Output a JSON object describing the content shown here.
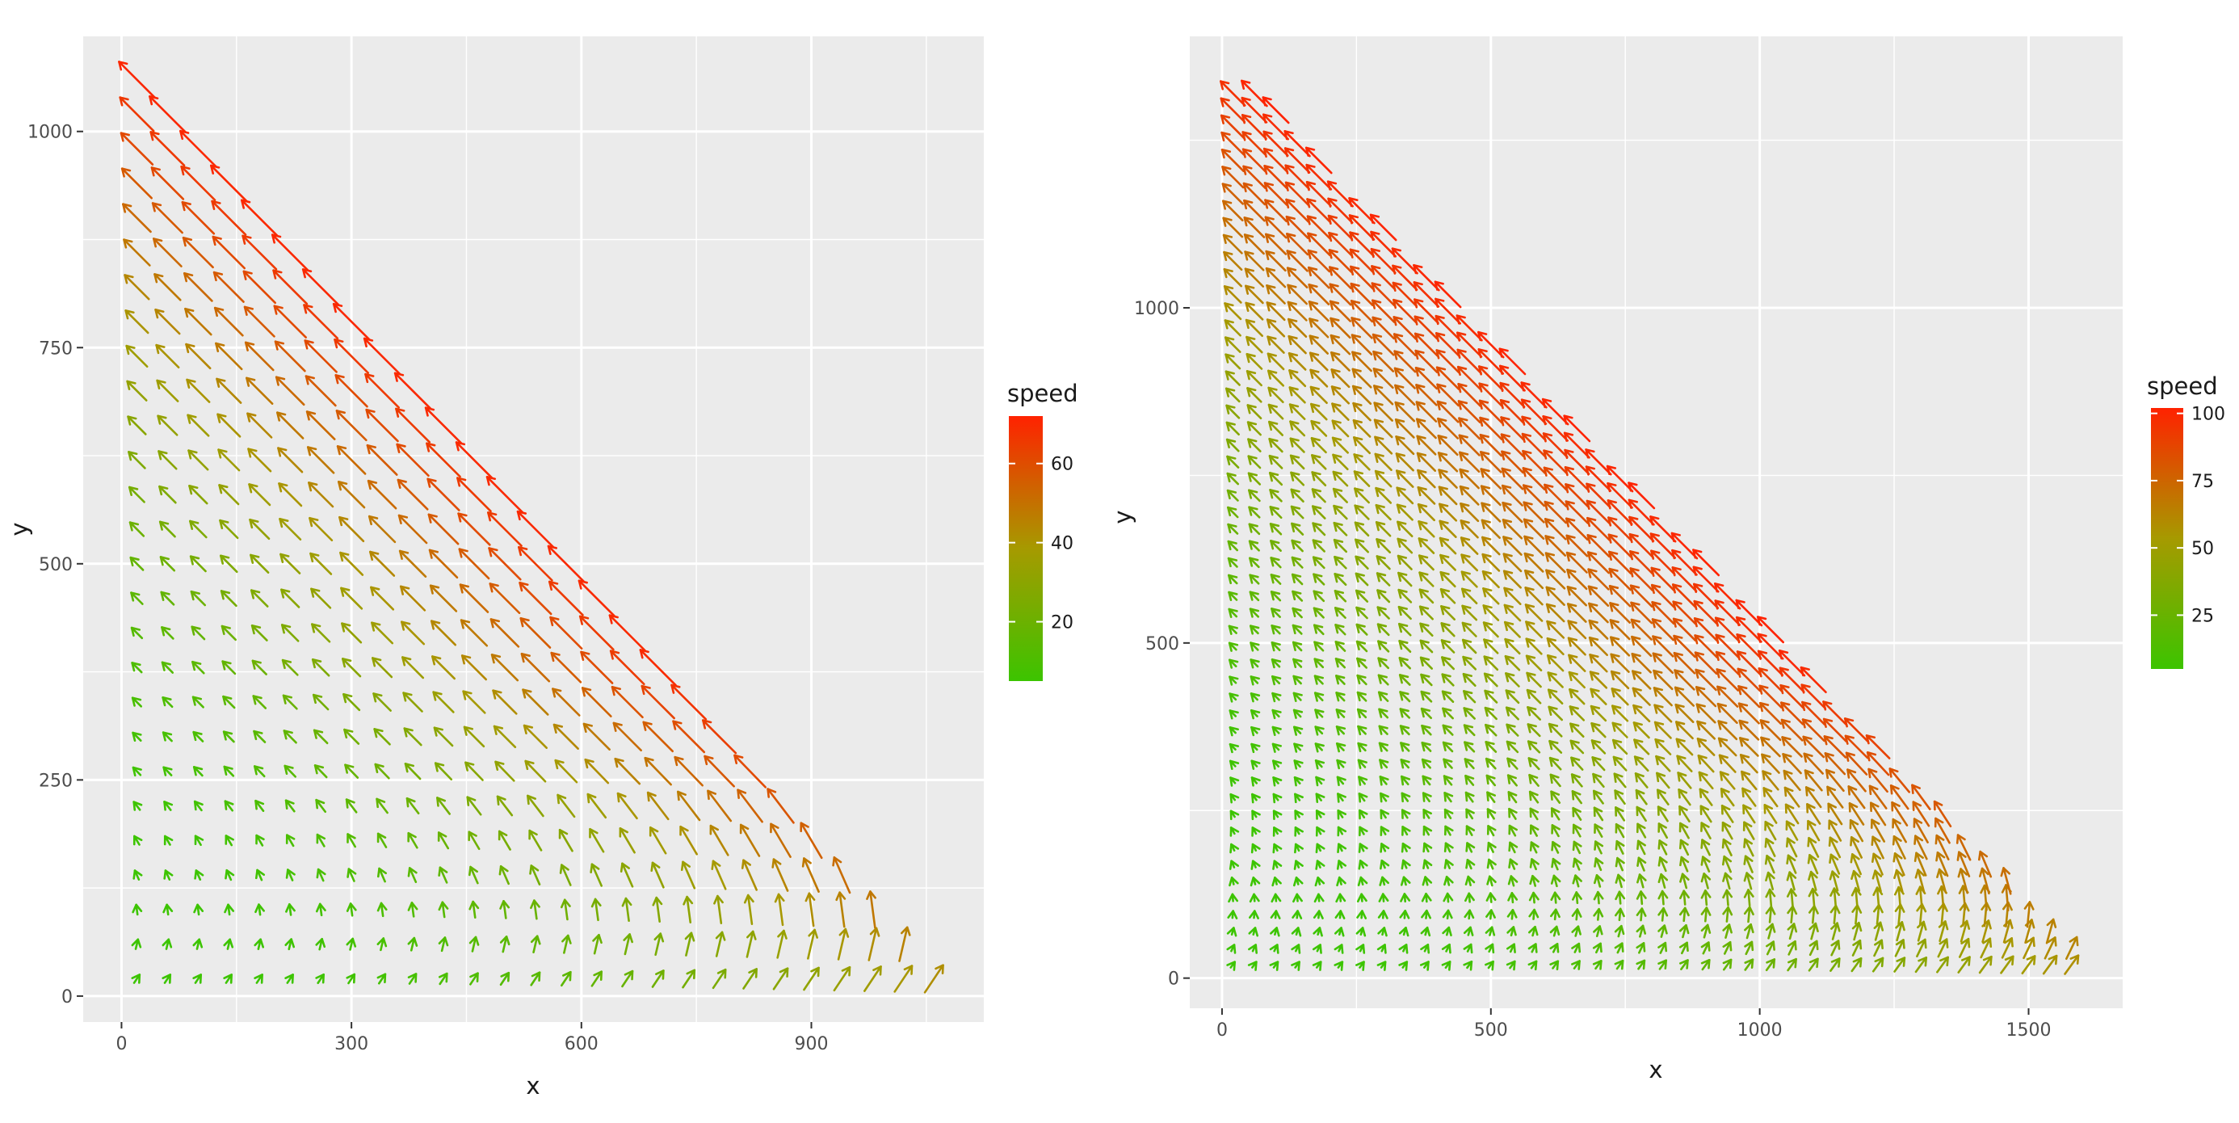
{
  "chart_data": [
    {
      "type": "vector-field",
      "xlabel": "x",
      "ylabel": "y",
      "xlim": [
        -50,
        1125
      ],
      "ylim": [
        -30,
        1110
      ],
      "xticks": [
        0,
        300,
        600,
        900
      ],
      "yticks": [
        0,
        250,
        500,
        750,
        1000
      ],
      "xtick_labels": [
        "0",
        "300",
        "600",
        "900"
      ],
      "ytick_labels": [
        "0",
        "250",
        "500",
        "750",
        "1000"
      ],
      "grid": true,
      "legend": {
        "title": "speed",
        "position": "right",
        "range": [
          5,
          72
        ],
        "ticks": [
          20,
          40,
          60
        ],
        "tick_labels": [
          "20",
          "40",
          "60"
        ],
        "colors": [
          "#3cc400",
          "#ff2200"
        ]
      },
      "field": {
        "x_max": 1070,
        "y_max": 1060,
        "boundary": [
          [
            20,
            1060
          ],
          [
            180,
            1030
          ],
          [
            1070,
            60
          ]
        ],
        "grid_step_x": 40,
        "grid_step_y": 40,
        "max_speed": 72
      }
    },
    {
      "type": "vector-field",
      "xlabel": "x",
      "ylabel": "y",
      "xlim": [
        -60,
        1675
      ],
      "ylim": [
        -45,
        1405
      ],
      "xticks": [
        0,
        500,
        1000,
        1500
      ],
      "yticks": [
        0,
        500,
        1000
      ],
      "xtick_labels": [
        "0",
        "500",
        "1000",
        "1500"
      ],
      "ytick_labels": [
        "0",
        "500",
        "1000"
      ],
      "grid": true,
      "legend": {
        "title": "speed",
        "position": "right",
        "range": [
          5,
          102
        ],
        "ticks": [
          25,
          50,
          75,
          100
        ],
        "tick_labels": [
          "25",
          "50",
          "75",
          "100"
        ],
        "colors": [
          "#3cc400",
          "#ff2200"
        ]
      },
      "field": {
        "x_max": 1590,
        "y_max": 1340,
        "boundary": [
          [
            20,
            1340
          ],
          [
            250,
            1280
          ],
          [
            1600,
            60
          ]
        ],
        "grid_step_x": 40,
        "grid_step_y": 25,
        "max_speed": 102
      }
    }
  ]
}
